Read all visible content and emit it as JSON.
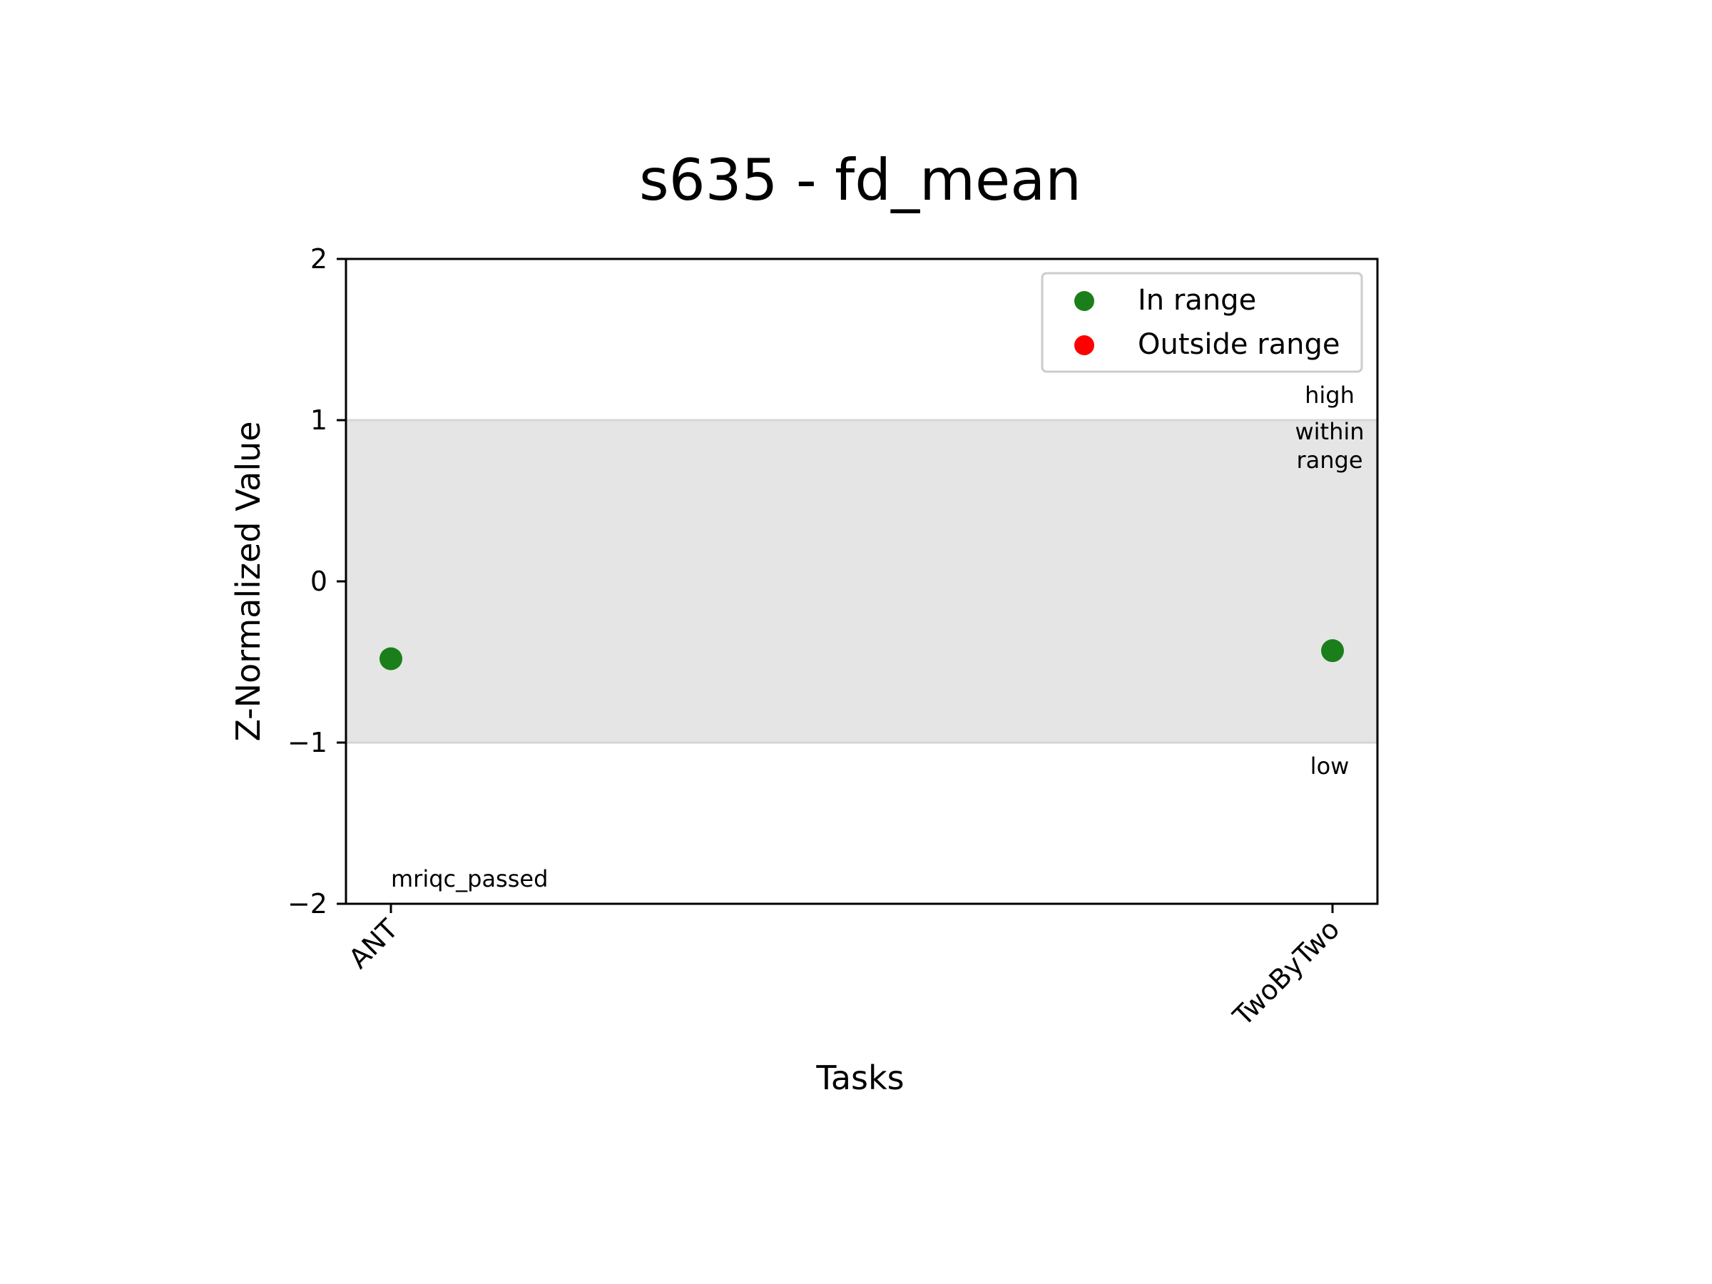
{
  "chart_data": {
    "type": "scatter",
    "title": "s635 - fd_mean",
    "xlabel": "Tasks",
    "ylabel": "Z-Normalized Value",
    "categories": [
      "ANT",
      "TwoByTwo"
    ],
    "ylim": [
      -2,
      2
    ],
    "yticks": [
      -2,
      -1,
      0,
      1,
      2
    ],
    "ytick_labels": [
      "−2",
      "−1",
      "0",
      "1",
      "2"
    ],
    "grid": false,
    "shaded_range": {
      "from": -1,
      "to": 1,
      "color": "#e5e5e5"
    },
    "series": [
      {
        "name": "In range",
        "color": "#1a7f1a",
        "points": [
          {
            "category": "ANT",
            "y": -0.48
          },
          {
            "category": "TwoByTwo",
            "y": -0.43
          }
        ]
      },
      {
        "name": "Outside range",
        "color": "#ff0000",
        "points": []
      }
    ],
    "legend": {
      "placement": "top-right",
      "entries": [
        {
          "label": "In range",
          "color": "#1a7f1a"
        },
        {
          "label": "Outside range",
          "color": "#ff0000"
        }
      ]
    },
    "annotations": {
      "high": "high",
      "within_line1": "within",
      "within_line2": "range",
      "low": "low",
      "status": "mriqc_passed"
    }
  }
}
